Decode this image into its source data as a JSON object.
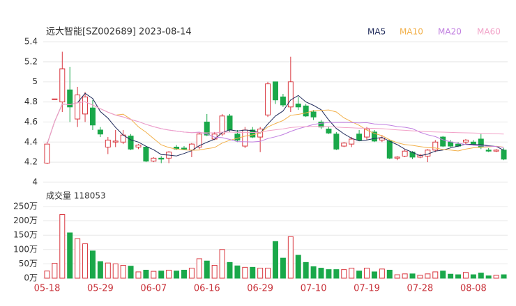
{
  "chart_data": {
    "type": "candlestick",
    "title": "远大智能[SZ002689] 2023-08-14",
    "categories": [
      "05-18",
      null,
      null,
      null,
      null,
      null,
      null,
      "05-29",
      null,
      null,
      null,
      null,
      null,
      null,
      "06-07",
      null,
      null,
      null,
      null,
      null,
      null,
      "06-16",
      null,
      null,
      null,
      null,
      null,
      null,
      "06-29",
      null,
      null,
      null,
      null,
      null,
      null,
      "07-10",
      null,
      null,
      null,
      null,
      null,
      null,
      "07-19",
      null,
      null,
      null,
      null,
      null,
      null,
      "07-28",
      null,
      null,
      null,
      null,
      null,
      null,
      "08-08",
      null,
      null,
      null,
      null
    ],
    "open": [
      4.19,
      4.83,
      4.8,
      4.92,
      4.63,
      4.68,
      4.74,
      4.52,
      4.35,
      4.4,
      4.4,
      4.46,
      4.35,
      4.35,
      4.21,
      4.24,
      4.24,
      4.35,
      4.34,
      4.32,
      4.35,
      4.6,
      4.43,
      4.48,
      4.66,
      4.48,
      4.36,
      4.52,
      4.45,
      4.67,
      5.0,
      4.85,
      4.75,
      4.78,
      4.76,
      4.7,
      4.6,
      4.53,
      4.48,
      4.36,
      4.38,
      4.48,
      4.45,
      4.5,
      4.42,
      4.41,
      4.24,
      4.26,
      4.3,
      4.25,
      4.26,
      4.32,
      4.45,
      4.4,
      4.38,
      4.4,
      4.4,
      4.43,
      4.32,
      4.31,
      4.32
    ],
    "high": [
      4.4,
      4.83,
      5.3,
      5.15,
      4.95,
      4.9,
      4.82,
      4.55,
      4.45,
      4.52,
      4.52,
      4.48,
      4.38,
      4.36,
      4.25,
      4.26,
      4.31,
      4.37,
      4.36,
      4.39,
      4.5,
      4.68,
      4.5,
      4.68,
      4.68,
      4.52,
      4.55,
      4.55,
      4.55,
      5.0,
      5.0,
      4.88,
      5.25,
      4.85,
      4.78,
      4.72,
      4.62,
      4.55,
      4.5,
      4.4,
      4.45,
      4.52,
      4.55,
      4.52,
      4.47,
      4.42,
      4.26,
      4.33,
      4.31,
      4.28,
      4.33,
      4.42,
      4.46,
      4.42,
      4.4,
      4.43,
      4.42,
      4.48,
      4.34,
      4.33,
      4.34
    ],
    "low": [
      4.18,
      4.83,
      4.7,
      4.6,
      4.55,
      4.6,
      4.52,
      4.45,
      4.28,
      4.35,
      4.38,
      4.32,
      4.33,
      4.2,
      4.2,
      4.19,
      4.19,
      4.32,
      4.32,
      4.25,
      4.33,
      4.46,
      4.42,
      4.46,
      4.5,
      4.4,
      4.34,
      4.44,
      4.3,
      4.65,
      4.78,
      4.75,
      4.7,
      4.72,
      4.65,
      4.62,
      4.53,
      4.48,
      4.32,
      4.35,
      4.35,
      4.42,
      4.42,
      4.4,
      4.4,
      4.23,
      4.22,
      4.25,
      4.23,
      4.24,
      4.2,
      4.3,
      4.35,
      4.35,
      4.35,
      4.38,
      4.37,
      4.33,
      4.3,
      4.3,
      4.22
    ],
    "close": [
      4.38,
      4.83,
      5.13,
      4.75,
      4.87,
      4.85,
      4.57,
      4.48,
      4.42,
      4.41,
      4.47,
      4.33,
      4.37,
      4.21,
      4.24,
      4.23,
      4.3,
      4.33,
      4.33,
      4.38,
      4.48,
      4.47,
      4.48,
      4.66,
      4.52,
      4.42,
      4.52,
      4.45,
      4.53,
      4.98,
      4.82,
      4.77,
      5.0,
      4.75,
      4.66,
      4.65,
      4.55,
      4.49,
      4.33,
      4.39,
      4.43,
      4.42,
      4.53,
      4.41,
      4.44,
      4.24,
      4.25,
      4.31,
      4.25,
      4.27,
      4.32,
      4.4,
      4.36,
      4.36,
      4.36,
      4.42,
      4.38,
      4.35,
      4.31,
      4.32,
      4.23
    ],
    "up_color": "#d9363e",
    "down_color": "#1aa84a",
    "ylim": [
      4,
      5.4
    ],
    "yticks": [
      4,
      4.2,
      4.4,
      4.6,
      4.8,
      5,
      5.2,
      5.4
    ],
    "grid": true,
    "indicators": [
      {
        "name": "MA5",
        "color": "#1f2a5a"
      },
      {
        "name": "MA10",
        "color": "#f2b04a"
      },
      {
        "name": "MA20",
        "color": "#c07ee0"
      },
      {
        "name": "MA60",
        "color": "#f2a2c8"
      }
    ],
    "volume": {
      "label": "成交量 118053",
      "values": [
        25,
        52,
        222,
        158,
        138,
        120,
        95,
        58,
        53,
        50,
        45,
        42,
        22,
        28,
        24,
        25,
        28,
        25,
        28,
        35,
        68,
        60,
        45,
        100,
        55,
        43,
        38,
        38,
        35,
        35,
        128,
        70,
        145,
        80,
        55,
        40,
        35,
        30,
        30,
        30,
        35,
        25,
        35,
        22,
        32,
        28,
        12,
        15,
        15,
        10,
        15,
        22,
        25,
        14,
        12,
        20,
        12,
        18,
        8,
        10,
        12
      ],
      "ylim": [
        0,
        250
      ],
      "yticks": [
        {
          "value": 0,
          "label": "0万"
        },
        {
          "value": 50,
          "label": "50万"
        },
        {
          "value": 100,
          "label": "100万"
        },
        {
          "value": 150,
          "label": "150万"
        },
        {
          "value": 200,
          "label": "200万"
        },
        {
          "value": 250,
          "label": "250万"
        }
      ]
    }
  }
}
